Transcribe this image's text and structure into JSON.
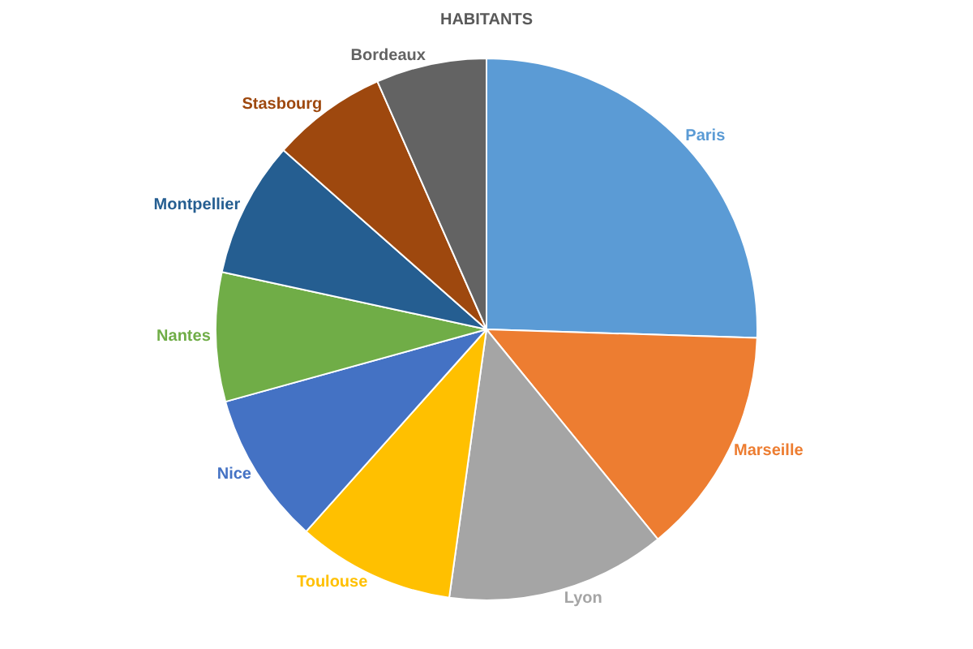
{
  "chart_data": {
    "type": "pie",
    "title": "HABITANTS",
    "categories": [
      "Paris",
      "Marseille",
      "Lyon",
      "Toulouse",
      "Nice",
      "Nantes",
      "Montpellier",
      "Stasbourg",
      "Bordeaux"
    ],
    "values": [
      25.5,
      13.6,
      13.1,
      9.4,
      9.1,
      7.7,
      8.1,
      6.9,
      6.6
    ],
    "colors": [
      "#5b9bd5",
      "#ed7d31",
      "#a5a5a5",
      "#ffc000",
      "#4472c4",
      "#70ad47",
      "#255e91",
      "#9e480e",
      "#636363"
    ],
    "legend": false
  }
}
